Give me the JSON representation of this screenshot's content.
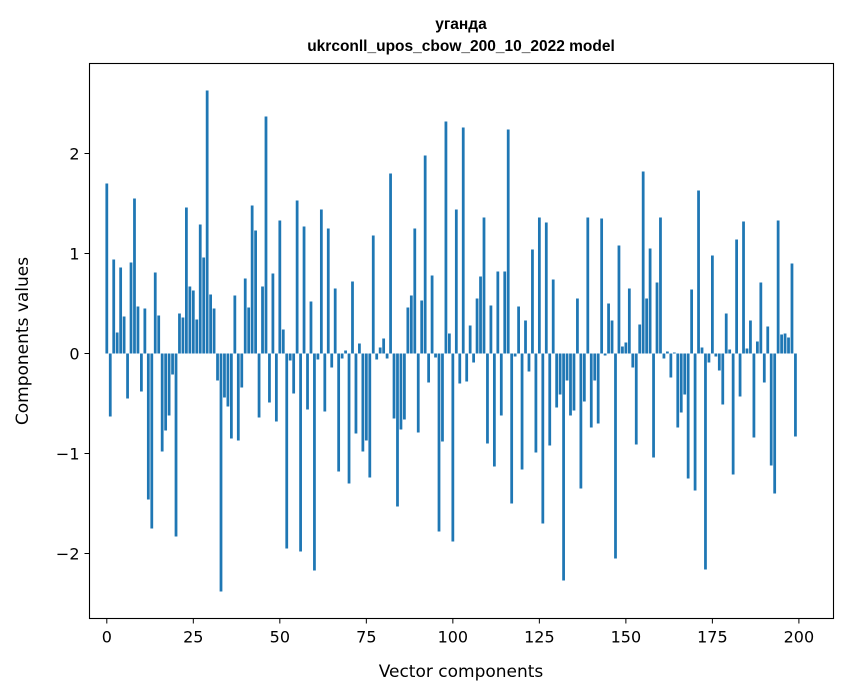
{
  "chart_data": {
    "type": "bar",
    "title": "уганда",
    "subtitle": "ukrconll_upos_cbow_200_10_2022 model",
    "xlabel": "Vector components",
    "ylabel": "Components values",
    "xlim": [
      -5,
      210
    ],
    "ylim": [
      -2.65,
      2.9
    ],
    "xticks": [
      0,
      25,
      50,
      75,
      100,
      125,
      150,
      175,
      200
    ],
    "yticks": [
      -2,
      -1,
      0,
      1,
      2
    ],
    "ytick_labels": [
      "−2",
      "−1",
      "0",
      "1",
      "2"
    ],
    "bar_color": "#1f77b4",
    "grid": false,
    "x": [
      0,
      1,
      2,
      3,
      4,
      5,
      6,
      7,
      8,
      9,
      10,
      11,
      12,
      13,
      14,
      15,
      16,
      17,
      18,
      19,
      20,
      21,
      22,
      23,
      24,
      25,
      26,
      27,
      28,
      29,
      30,
      31,
      32,
      33,
      34,
      35,
      36,
      37,
      38,
      39,
      40,
      41,
      42,
      43,
      44,
      45,
      46,
      47,
      48,
      49,
      50,
      51,
      52,
      53,
      54,
      55,
      56,
      57,
      58,
      59,
      60,
      61,
      62,
      63,
      64,
      65,
      66,
      67,
      68,
      69,
      70,
      71,
      72,
      73,
      74,
      75,
      76,
      77,
      78,
      79,
      80,
      81,
      82,
      83,
      84,
      85,
      86,
      87,
      88,
      89,
      90,
      91,
      92,
      93,
      94,
      95,
      96,
      97,
      98,
      99,
      100,
      101,
      102,
      103,
      104,
      105,
      106,
      107,
      108,
      109,
      110,
      111,
      112,
      113,
      114,
      115,
      116,
      117,
      118,
      119,
      120,
      121,
      122,
      123,
      124,
      125,
      126,
      127,
      128,
      129,
      130,
      131,
      132,
      133,
      134,
      135,
      136,
      137,
      138,
      139,
      140,
      141,
      142,
      143,
      144,
      145,
      146,
      147,
      148,
      149,
      150,
      151,
      152,
      153,
      154,
      155,
      156,
      157,
      158,
      159,
      160,
      161,
      162,
      163,
      164,
      165,
      166,
      167,
      168,
      169,
      170,
      171,
      172,
      173,
      174,
      175,
      176,
      177,
      178,
      179,
      180,
      181,
      182,
      183,
      184,
      185,
      186,
      187,
      188,
      189,
      190,
      191,
      192,
      193,
      194,
      195,
      196,
      197,
      198,
      199
    ],
    "values": [
      1.7,
      -0.63,
      0.94,
      0.21,
      0.86,
      0.37,
      -0.45,
      0.91,
      1.55,
      0.47,
      -0.38,
      0.45,
      -1.46,
      -1.75,
      0.81,
      0.38,
      -0.98,
      -0.77,
      -0.62,
      -0.21,
      -1.83,
      0.4,
      0.36,
      1.46,
      0.67,
      0.63,
      0.34,
      1.29,
      0.96,
      2.63,
      0.59,
      0.45,
      -0.27,
      -2.38,
      -0.44,
      -0.53,
      -0.85,
      0.58,
      -0.87,
      -0.34,
      0.75,
      0.46,
      1.48,
      1.23,
      -0.64,
      0.67,
      2.37,
      -0.49,
      0.8,
      -0.68,
      1.33,
      0.24,
      -1.95,
      -0.07,
      -0.4,
      1.53,
      -1.98,
      1.27,
      -0.56,
      0.52,
      -2.17,
      -0.06,
      1.44,
      -0.58,
      1.25,
      -0.14,
      0.65,
      -1.18,
      -0.05,
      0.03,
      -1.3,
      0.72,
      -0.8,
      0.1,
      -0.98,
      -0.87,
      -1.24,
      1.18,
      -0.06,
      0.06,
      0.15,
      -0.05,
      1.8,
      -0.65,
      -1.53,
      -0.76,
      -0.66,
      0.46,
      0.58,
      1.25,
      -0.79,
      0.53,
      1.98,
      -0.29,
      0.78,
      -0.04,
      -1.78,
      -0.88,
      2.32,
      0.2,
      -1.88,
      1.44,
      -0.3,
      2.26,
      -0.28,
      0.28,
      -0.09,
      0.55,
      0.77,
      1.36,
      -0.9,
      0.48,
      -1.13,
      0.82,
      -0.62,
      0.82,
      2.24,
      -1.5,
      -0.03,
      0.47,
      -1.16,
      0.33,
      -0.18,
      1.04,
      -0.99,
      1.36,
      -1.7,
      1.31,
      -0.92,
      0.74,
      -0.54,
      -0.41,
      -2.27,
      -0.27,
      -0.62,
      -0.57,
      0.55,
      -1.35,
      -0.48,
      1.36,
      -0.74,
      -0.27,
      -0.7,
      1.35,
      -0.02,
      0.5,
      0.33,
      -2.05,
      1.08,
      0.07,
      0.11,
      0.65,
      -0.14,
      -0.91,
      0.29,
      1.82,
      0.55,
      1.05,
      -1.04,
      0.71,
      1.36,
      -0.05,
      0.02,
      -0.24,
      0.01,
      -0.74,
      -0.59,
      -0.41,
      -1.25,
      0.64,
      -1.37,
      1.63,
      0.06,
      -2.16,
      -0.09,
      0.98,
      -0.03,
      -0.17,
      -0.51,
      0.4,
      0.04,
      -1.21,
      1.14,
      -0.43,
      1.32,
      0.05,
      0.33,
      -0.84,
      0.12,
      0.71,
      -0.29,
      0.27,
      -1.12,
      -1.4,
      1.33,
      0.19,
      0.2,
      0.16,
      0.9,
      -0.83
    ]
  }
}
